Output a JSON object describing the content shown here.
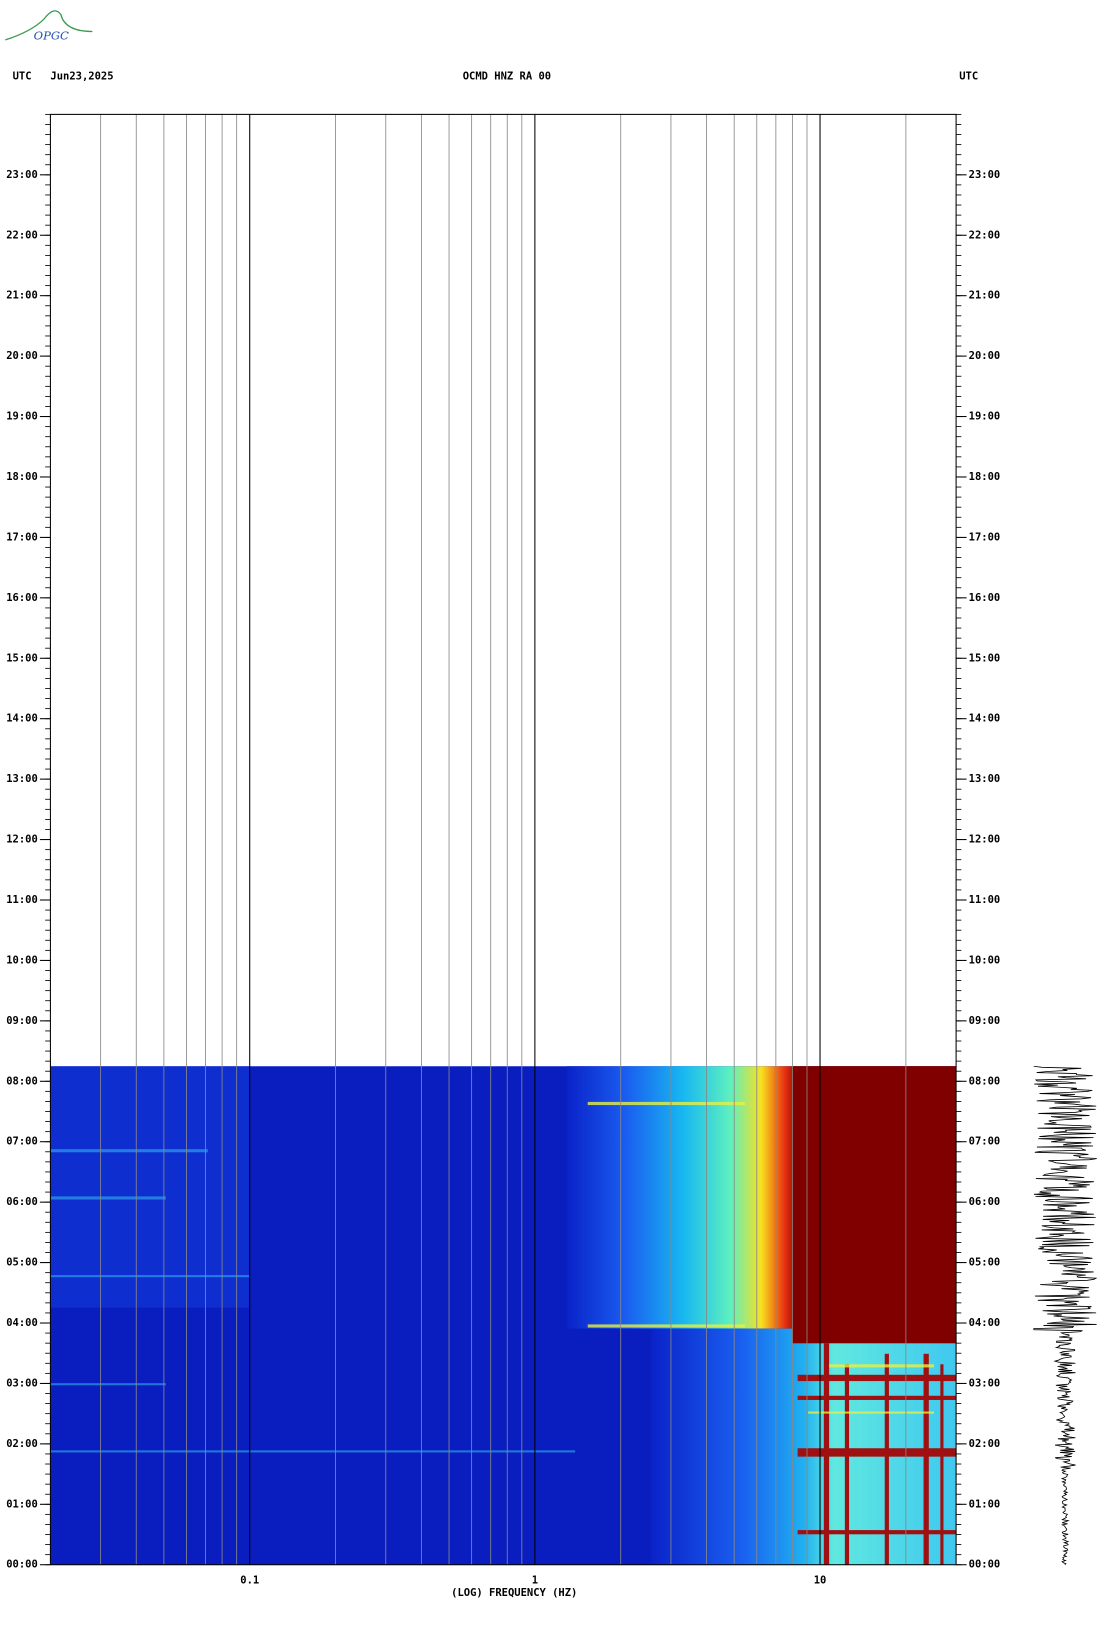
{
  "chart_data": {
    "type": "spectrogram",
    "logo": "OPGC",
    "left_header": "UTC",
    "date": "Jun23,2025",
    "title": "OCMD HNZ RA 00",
    "right_header": "UTC",
    "xlabel": "(LOG) FREQUENCY (HZ)",
    "xscale": "log",
    "xlim": [
      0.02,
      30
    ],
    "xticks": [
      {
        "value": 0.1,
        "label": "0.1"
      },
      1,
      10
    ],
    "xminorticks": [
      0.03,
      0.04,
      0.05,
      0.06,
      0.07,
      0.08,
      0.09,
      0.2,
      0.3,
      0.4,
      0.5,
      0.6,
      0.7,
      0.8,
      0.9,
      2,
      3,
      4,
      5,
      6,
      7,
      8,
      9,
      20
    ],
    "ylim": [
      0,
      24
    ],
    "yticks": [
      {
        "value": 0,
        "label": "00:00"
      },
      {
        "value": 1,
        "label": "01:00"
      },
      {
        "value": 2,
        "label": "02:00"
      },
      {
        "value": 3,
        "label": "03:00"
      },
      {
        "value": 4,
        "label": "04:00"
      },
      {
        "value": 5,
        "label": "05:00"
      },
      {
        "value": 6,
        "label": "06:00"
      },
      {
        "value": 7,
        "label": "07:00"
      },
      {
        "value": 8,
        "label": "08:00"
      },
      {
        "value": 9,
        "label": "09:00"
      },
      {
        "value": 10,
        "label": "10:00"
      },
      {
        "value": 11,
        "label": "11:00"
      },
      {
        "value": 12,
        "label": "12:00"
      },
      {
        "value": 13,
        "label": "13:00"
      },
      {
        "value": 14,
        "label": "14:00"
      },
      {
        "value": 15,
        "label": "15:00"
      },
      {
        "value": 16,
        "label": "16:00"
      },
      {
        "value": 17,
        "label": "17:00"
      },
      {
        "value": 18,
        "label": "18:00"
      },
      {
        "value": 19,
        "label": "19:00"
      },
      {
        "value": 20,
        "label": "20:00"
      },
      {
        "value": 21,
        "label": "21:00"
      },
      {
        "value": 22,
        "label": "22:00"
      },
      {
        "value": 23,
        "label": "23:00"
      }
    ]
  }
}
